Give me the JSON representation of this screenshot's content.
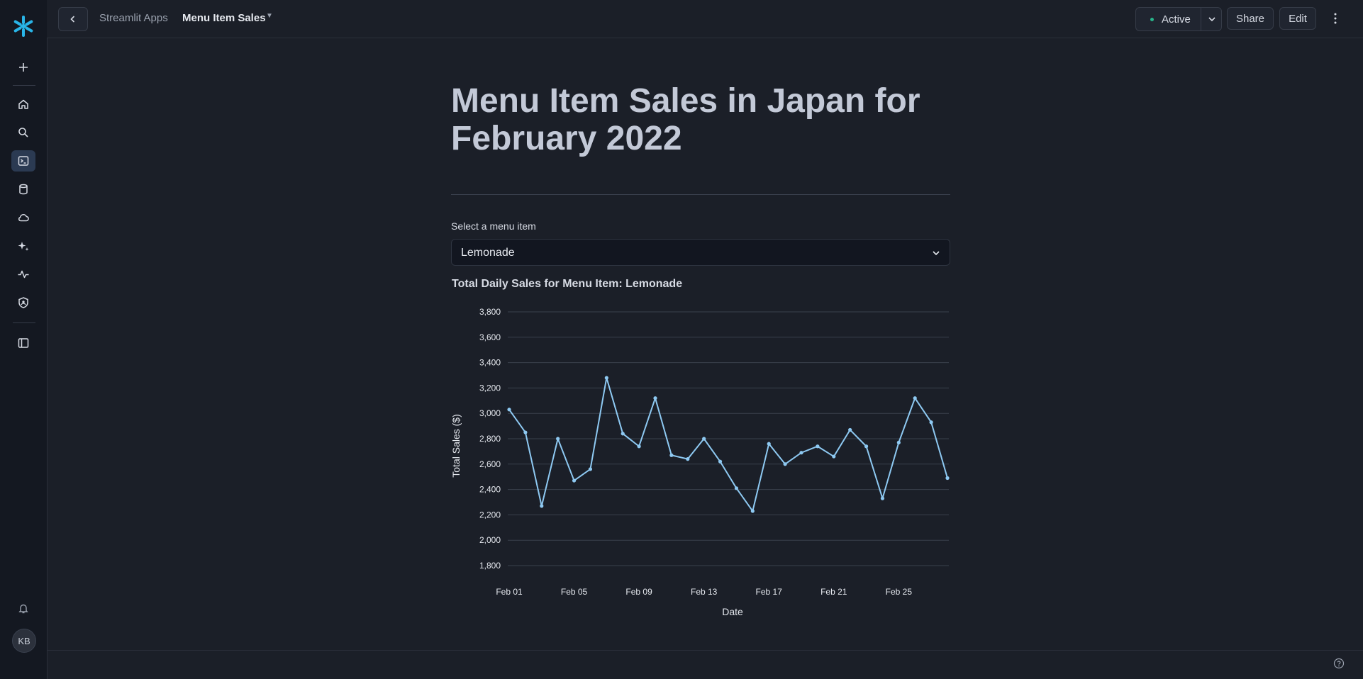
{
  "app": {
    "breadcrumb_parent": "Streamlit Apps",
    "breadcrumb_current": "Menu Item Sales",
    "status": "Active",
    "share_label": "Share",
    "edit_label": "Edit",
    "user_initials": "KB"
  },
  "sidebar_icons": [
    "snowflake-logo",
    "plus-icon",
    "home-icon",
    "search-icon",
    "terminal-icon",
    "database-icon",
    "cloud-icon",
    "sparkle-icon",
    "activity-icon",
    "shield-icon",
    "panel-toggle-icon",
    "bell-icon"
  ],
  "main": {
    "title": "Menu Item Sales in Japan for February 2022",
    "select_label": "Select a menu item",
    "select_value": "Lemonade",
    "chart_title": "Total Daily Sales for Menu Item: Lemonade"
  },
  "colors": {
    "background": "#1b1f28",
    "rail": "#141821",
    "accent": "#29b5e8",
    "line": "#8ec9f2",
    "status_dot": "#28b48a"
  },
  "chart_data": {
    "type": "line",
    "title": "Total Daily Sales for Menu Item: Lemonade",
    "xlabel": "Date",
    "ylabel": "Total Sales ($)",
    "x": [
      "2022-02-01",
      "2022-02-02",
      "2022-02-03",
      "2022-02-04",
      "2022-02-05",
      "2022-02-06",
      "2022-02-07",
      "2022-02-08",
      "2022-02-09",
      "2022-02-10",
      "2022-02-11",
      "2022-02-12",
      "2022-02-13",
      "2022-02-14",
      "2022-02-15",
      "2022-02-16",
      "2022-02-17",
      "2022-02-18",
      "2022-02-19",
      "2022-02-20",
      "2022-02-21",
      "2022-02-22",
      "2022-02-23",
      "2022-02-24",
      "2022-02-25",
      "2022-02-26",
      "2022-02-27",
      "2022-02-28"
    ],
    "values": [
      3030,
      2850,
      2270,
      2800,
      2470,
      2560,
      3280,
      2840,
      2740,
      3120,
      2670,
      2640,
      2800,
      2620,
      2410,
      2230,
      2760,
      2600,
      2690,
      2740,
      2660,
      2870,
      2740,
      2330,
      2770,
      3120,
      2930,
      2490
    ],
    "x_ticks": [
      "Feb 01",
      "Feb 05",
      "Feb 09",
      "Feb 13",
      "Feb 17",
      "Feb 21",
      "Feb 25"
    ],
    "y_ticks": [
      "1,800",
      "2,000",
      "2,200",
      "2,400",
      "2,600",
      "2,800",
      "3,000",
      "3,200",
      "3,400",
      "3,600",
      "3,800"
    ],
    "ylim": [
      1800,
      3800
    ],
    "grid": true,
    "legend": "none"
  }
}
